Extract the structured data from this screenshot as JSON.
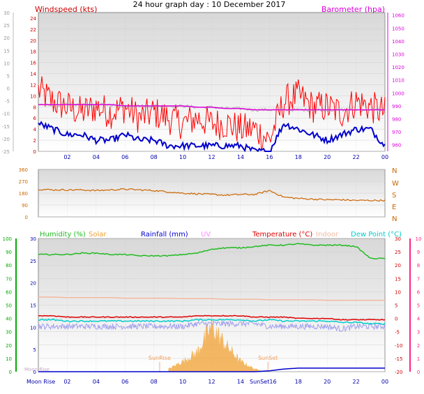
{
  "title": "24 hour graph day : 10 December 2017",
  "colors": {
    "windspeed": "#ff0000",
    "gust": "#ff0000",
    "average": "#0000cc",
    "barometer": "#dd00dd",
    "barometer_trace": "#b0b0b0",
    "direction": "#cc6600",
    "humidity": "#22bb22",
    "solar": "#f0a030",
    "rainfall": "#0000cc",
    "uv": "#ff88ff",
    "temperature": "#dd0000",
    "indoor": "#f4b8a0",
    "dewpoint": "#00cccc",
    "windchill": "#a0a0ee",
    "plot_bg": "#f0f0f0",
    "grid": "#cccccc",
    "left_axis_green": "#00aa00",
    "right_axis_pink": "#ff2288"
  },
  "chart_data": [
    {
      "type": "line",
      "name": "wind_and_barometer",
      "left_axis": {
        "label": "Windspeed (kts)",
        "ticks": [
          0,
          2,
          4,
          6,
          8,
          10,
          12,
          14,
          16,
          18,
          20,
          22,
          24
        ],
        "ylim": [
          0,
          25
        ]
      },
      "outer_left_axis": {
        "ticks": [
          -25,
          -20,
          -15,
          -10,
          -5,
          0,
          5,
          10,
          15,
          20,
          25,
          30
        ],
        "ylim": [
          -25,
          30
        ]
      },
      "right_axis": {
        "label": "Barometer (hpa)",
        "ticks": [
          960,
          970,
          980,
          990,
          1000,
          1010,
          1020,
          1030,
          1040,
          1050,
          1060
        ],
        "ylim": [
          955,
          1062
        ]
      },
      "x_ticks": [
        "02",
        "04",
        "06",
        "08",
        "10",
        "12",
        "14",
        "16",
        "18",
        "20",
        "22",
        "00"
      ],
      "hours": [
        0,
        1,
        2,
        3,
        4,
        5,
        6,
        7,
        8,
        9,
        10,
        11,
        12,
        13,
        14,
        15,
        16,
        17,
        18,
        19,
        20,
        21,
        22,
        23,
        24
      ],
      "gust_kts": [
        11,
        9,
        8,
        7,
        8,
        7,
        8,
        6,
        7,
        6,
        5,
        6,
        5,
        5,
        4,
        4,
        2,
        9,
        10,
        8,
        8,
        7,
        9,
        8,
        7
      ],
      "average_kts": [
        5,
        4,
        3,
        3,
        2,
        2,
        3,
        2,
        2,
        1,
        1,
        1,
        1,
        1,
        1,
        0,
        0,
        5,
        4,
        3,
        2,
        3,
        4,
        4,
        1
      ],
      "barometer_hpa": [
        991,
        991,
        991,
        991,
        991,
        991,
        990,
        990,
        990,
        990,
        990,
        989,
        989,
        988,
        988,
        987,
        987,
        987,
        987,
        987,
        987,
        987,
        987,
        987,
        987
      ]
    },
    {
      "type": "line",
      "name": "wind_direction",
      "left_ticks": [
        0,
        90,
        180,
        270,
        360
      ],
      "ylim": [
        0,
        360
      ],
      "right_labels": [
        "N",
        "W",
        "S",
        "E",
        "N"
      ],
      "x_ticks": [
        "02",
        "04",
        "06",
        "08",
        "10",
        "12",
        "14",
        "16",
        "18",
        "20",
        "22",
        "00"
      ],
      "hours": [
        0,
        1,
        2,
        3,
        4,
        5,
        6,
        7,
        8,
        9,
        10,
        11,
        12,
        13,
        14,
        15,
        16,
        17,
        18,
        19,
        20,
        21,
        22,
        23,
        24
      ],
      "direction_deg": [
        210,
        205,
        205,
        205,
        200,
        205,
        210,
        205,
        200,
        190,
        180,
        175,
        170,
        165,
        170,
        170,
        200,
        150,
        140,
        135,
        130,
        130,
        125,
        125,
        125
      ]
    },
    {
      "type": "line",
      "name": "temperature_humidity",
      "left_outer_axis": {
        "ticks": [
          0,
          10,
          20,
          30,
          40,
          50,
          60,
          70,
          80,
          90,
          100
        ],
        "ylim": [
          0,
          100
        ]
      },
      "left_inner_axis": {
        "ticks": [
          0,
          5,
          10,
          15,
          20,
          25,
          30
        ],
        "ylim": [
          0,
          30
        ]
      },
      "right_inner_axis": {
        "ticks": [
          -20,
          -15,
          -10,
          -5,
          0,
          5,
          10,
          15,
          20,
          25,
          30
        ],
        "ylim": [
          -20,
          30
        ]
      },
      "right_outer_axis": {
        "ticks": [
          0,
          1,
          2,
          3,
          4,
          5,
          6,
          7,
          8,
          9,
          10
        ],
        "ylim": [
          0,
          10
        ]
      },
      "legend": [
        {
          "label": "Humidity (%)",
          "key": "humidity"
        },
        {
          "label": "Solar",
          "key": "solar"
        },
        {
          "label": "Rainfall (mm)",
          "key": "rainfall"
        },
        {
          "label": "UV",
          "key": "uv"
        },
        {
          "label": "Temperature (°C)",
          "key": "temperature"
        },
        {
          "label": "Indoor",
          "key": "indoor"
        },
        {
          "label": "Dew Point (°C)",
          "key": "dewpoint"
        }
      ],
      "annotations": {
        "sunrise": "SunRise",
        "sunset": "SunSet",
        "moon_rise_bottom": "Moon Rise",
        "sunset_bottom": "SunSet16",
        "moon_inner": "Moon Rise"
      },
      "sunrise_hour": 8.4,
      "sunset_hour": 15.9,
      "x_ticks": [
        "02",
        "04",
        "06",
        "08",
        "10",
        "12",
        "14",
        "16",
        "18",
        "20",
        "22",
        "00"
      ],
      "hours": [
        0,
        1,
        2,
        3,
        4,
        5,
        6,
        7,
        8,
        9,
        10,
        11,
        12,
        13,
        14,
        15,
        16,
        17,
        18,
        19,
        20,
        21,
        22,
        23,
        24
      ],
      "humidity_pct": [
        88,
        88,
        88,
        89,
        89,
        88,
        88,
        87,
        87,
        87,
        88,
        89,
        92,
        93,
        93,
        94,
        95,
        95,
        96,
        95,
        95,
        95,
        94,
        85,
        85
      ],
      "temperature_c": [
        1.0,
        1.0,
        0.5,
        0.5,
        0.5,
        0.5,
        0.5,
        0.5,
        0.5,
        0.5,
        0.5,
        1.0,
        1.0,
        1.0,
        1.0,
        0.5,
        0.5,
        0.5,
        0.0,
        0.0,
        0.0,
        -0.5,
        -0.5,
        -0.5,
        -0.5
      ],
      "dewpoint_c": [
        -0.5,
        -0.5,
        -1.0,
        -1.0,
        -1.0,
        -1.0,
        -1.0,
        -1.0,
        -1.0,
        -1.0,
        -1.0,
        -0.5,
        -0.5,
        -0.5,
        -0.5,
        -1.0,
        -0.5,
        -1.0,
        -1.0,
        -1.0,
        -1.0,
        -1.5,
        -1.5,
        -2.0,
        -2.0
      ],
      "windchill_c": [
        -3,
        -3,
        -3,
        -3,
        -3,
        -3,
        -3,
        -3,
        -3,
        -3,
        -3,
        -2,
        -2,
        -2,
        -2,
        -2,
        -3,
        -3,
        -3,
        -3,
        -3,
        -4,
        -3,
        -3,
        -3
      ],
      "indoor_c": [
        8.0,
        8.0,
        7.8,
        7.8,
        7.8,
        7.8,
        7.6,
        7.6,
        7.6,
        7.6,
        7.4,
        7.4,
        7.4,
        7.2,
        7.2,
        7.2,
        7.0,
        7.0,
        7.0,
        7.0,
        6.8,
        6.8,
        6.8,
        6.8,
        6.8
      ],
      "solar": [
        0,
        0,
        0,
        0,
        0,
        0,
        0,
        0,
        0,
        0.2,
        0.8,
        1.5,
        3.5,
        2.0,
        0.8,
        0.2,
        0,
        0,
        0,
        0,
        0,
        0,
        0,
        0,
        0
      ],
      "rainfall_mm": [
        0,
        0,
        0,
        0,
        0,
        0,
        0,
        0,
        0,
        0,
        0,
        0,
        0,
        0,
        0,
        0,
        0.2,
        0.6,
        0.8,
        0.8,
        0.8,
        0.8,
        0.8,
        0.8,
        0.8
      ]
    }
  ]
}
